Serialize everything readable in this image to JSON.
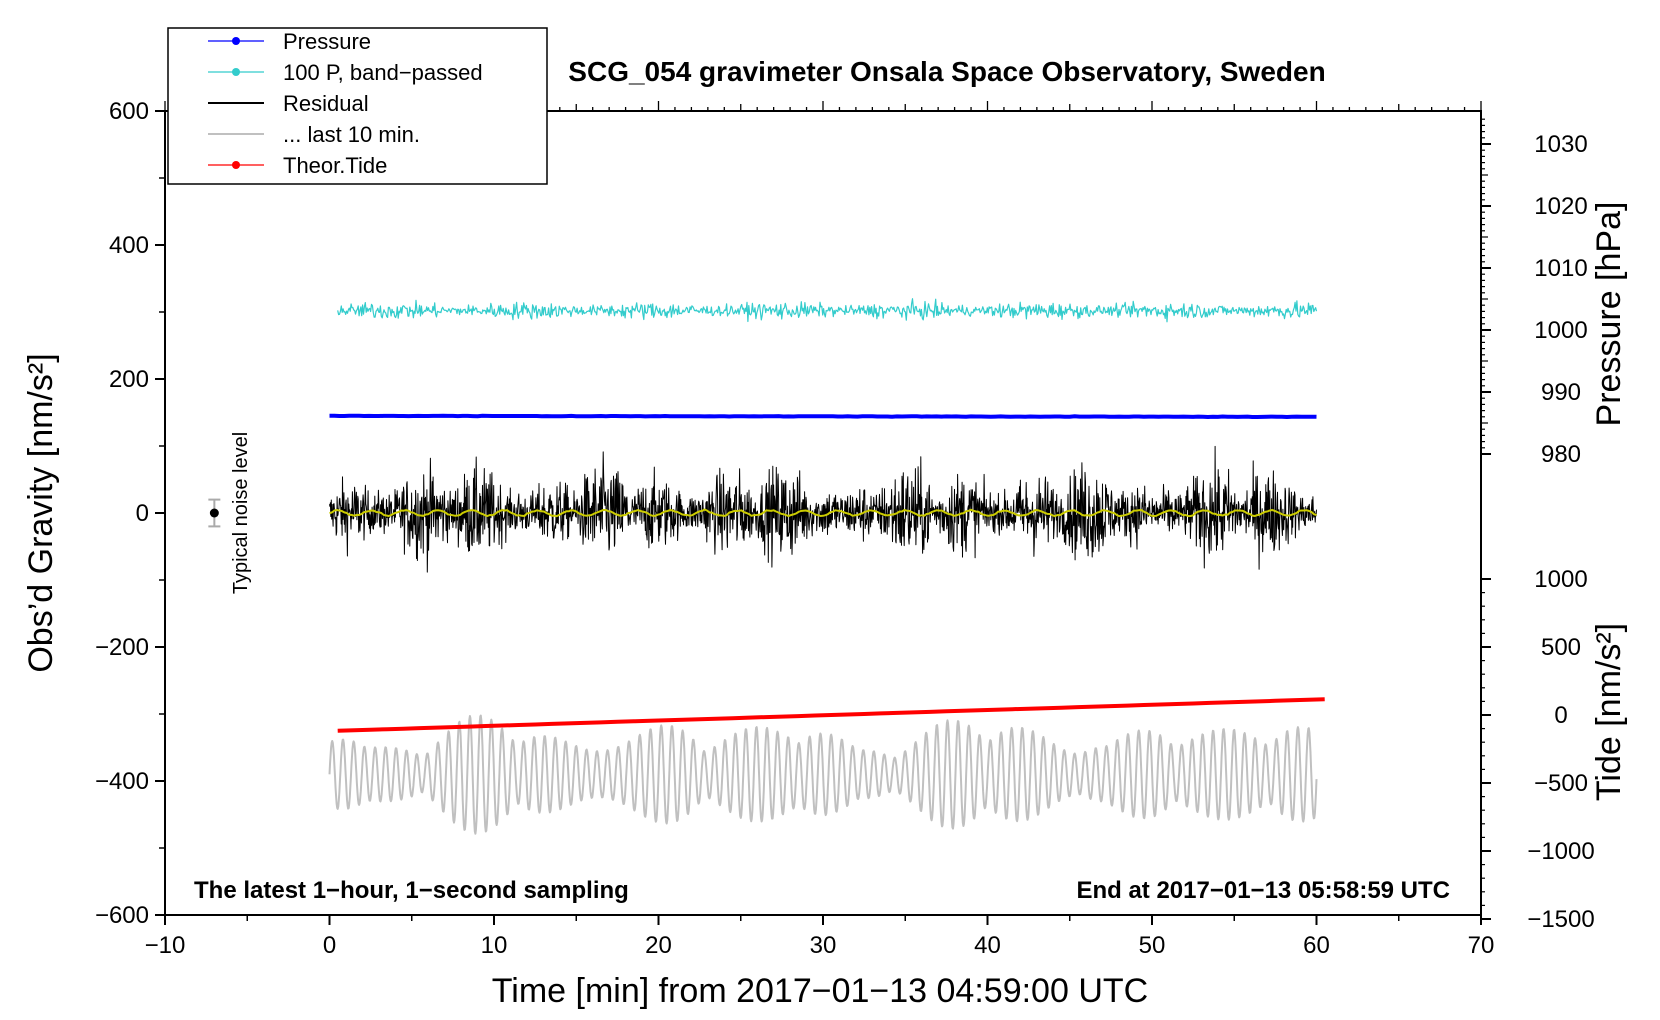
{
  "chart_data": {
    "type": "line",
    "title": "SCG_054 gravimeter Onsala Space Observatory, Sweden",
    "xlabel": "Time [min] from 2017−01−13 04:59:00 UTC",
    "ylabel_left": "Obs’d Gravity [nm/s²]",
    "ylabel_pressure": "Pressure [hPa]",
    "ylabel_tide": "Tide [nm/s²]",
    "xlim": [
      -10,
      70
    ],
    "ylim_left": [
      -600,
      600
    ],
    "x_ticks": [
      "−10",
      "0",
      "10",
      "20",
      "30",
      "40",
      "50",
      "60",
      "70"
    ],
    "y_ticks_left": [
      "600",
      "400",
      "200",
      "0",
      "−200",
      "−400",
      "−600"
    ],
    "pressure_ticks": [
      "1030",
      "1020",
      "1010",
      "1000",
      "990",
      "980"
    ],
    "tide_ticks": [
      "1000",
      "500",
      "0",
      "−500",
      "−1000",
      "−1500"
    ],
    "note_left": "The latest 1−hour, 1−second sampling",
    "note_right": "End at 2017−01−13 05:58:59 UTC",
    "noise_label": "Typical noise level",
    "legend": [
      {
        "label": "Pressure",
        "color": "#0000ff",
        "marker": true
      },
      {
        "label": "100 P, band−passed",
        "color": "#33cccc",
        "marker": true
      },
      {
        "label": "Residual",
        "color": "#000000",
        "marker": false
      },
      {
        "label": "... last 10 min.",
        "color": "#c0c0c0",
        "marker": false
      },
      {
        "label": "Theor.Tide",
        "color": "#ff0000",
        "marker": true
      }
    ],
    "series": [
      {
        "name": "Pressure",
        "color": "#0000ff",
        "x_range": [
          0,
          60
        ],
        "level": 145
      },
      {
        "name": "100 P, band-passed",
        "color": "#33cccc",
        "x_range": [
          0.5,
          60
        ],
        "level": 302,
        "amplitude": 14
      },
      {
        "name": "Residual",
        "color": "#000000",
        "x_range": [
          0,
          60
        ],
        "level": 0,
        "amplitude": 80
      },
      {
        "name": "Smoothed residual",
        "color": "#cccc00",
        "x_range": [
          0,
          60
        ],
        "level": 0
      },
      {
        "name": "... last 10 min.",
        "color": "#c0c0c0",
        "x_range": [
          0,
          60
        ],
        "level": -390,
        "amplitude": 80
      },
      {
        "name": "Theor.Tide",
        "color": "#ff0000",
        "x_range": [
          0.5,
          60.5
        ],
        "y_start": -325,
        "y_end": -278
      }
    ],
    "noise_bar": {
      "x": -7,
      "y": 0,
      "err": 20
    }
  }
}
